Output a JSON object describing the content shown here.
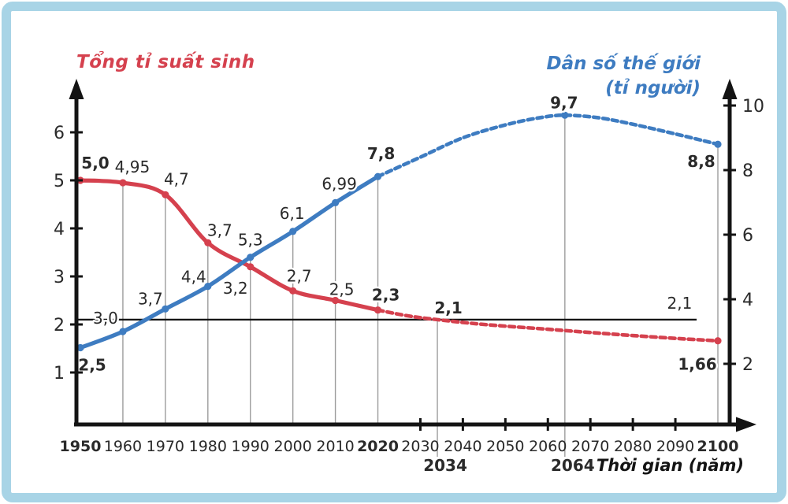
{
  "colors": {
    "red": "#d5414e",
    "blue": "#3e7cc1",
    "axis": "#141414",
    "grid": "#9c9c9c",
    "text": "#2a2a2a",
    "frame_border": "#a8d4e6",
    "background": "#ffffff"
  },
  "chart_data": {
    "type": "line",
    "title_left": "Tổng tỉ suất sinh",
    "title_right_line1": "Dân số thế giới",
    "title_right_line2": "(tỉ người)",
    "xlabel": "Thời gian (năm)",
    "x_axis": {
      "ticks": [
        {
          "label": "1950",
          "year": 1950,
          "bold": true,
          "mark": false
        },
        {
          "label": "1960",
          "year": 1960,
          "bold": false,
          "mark": false
        },
        {
          "label": "1970",
          "year": 1970,
          "bold": false,
          "mark": false
        },
        {
          "label": "1980",
          "year": 1980,
          "bold": false,
          "mark": false
        },
        {
          "label": "1990",
          "year": 1990,
          "bold": false,
          "mark": false
        },
        {
          "label": "2000",
          "year": 2000,
          "bold": false,
          "mark": false
        },
        {
          "label": "2010",
          "year": 2010,
          "bold": false,
          "mark": false
        },
        {
          "label": "2020",
          "year": 2020,
          "bold": true,
          "mark": false
        },
        {
          "label": "2030",
          "year": 2030,
          "bold": false,
          "mark": true
        },
        {
          "label": "2040",
          "year": 2040,
          "bold": false,
          "mark": true
        },
        {
          "label": "2050",
          "year": 2050,
          "bold": false,
          "mark": true
        },
        {
          "label": "2060",
          "year": 2060,
          "bold": false,
          "mark": true
        },
        {
          "label": "2070",
          "year": 2070,
          "bold": false,
          "mark": true
        },
        {
          "label": "2080",
          "year": 2080,
          "bold": false,
          "mark": true
        },
        {
          "label": "2090",
          "year": 2090,
          "bold": false,
          "mark": true
        },
        {
          "label": "2100",
          "year": 2100,
          "bold": true,
          "mark": false
        }
      ],
      "below_labels": [
        {
          "label": "2034",
          "year": 2034
        },
        {
          "label": "2064",
          "year": 2064
        }
      ]
    },
    "left_axis": {
      "ticks": [
        {
          "label": "1",
          "value": 1
        },
        {
          "label": "2",
          "value": 2
        },
        {
          "label": "3",
          "value": 3
        },
        {
          "label": "4",
          "value": 4
        },
        {
          "label": "5",
          "value": 5
        },
        {
          "label": "6",
          "value": 6
        }
      ]
    },
    "right_axis": {
      "ticks": [
        {
          "label": "2",
          "value": 2
        },
        {
          "label": "4",
          "value": 4
        },
        {
          "label": "6",
          "value": 6
        },
        {
          "label": "8",
          "value": 8
        },
        {
          "label": "10",
          "value": 10
        }
      ]
    },
    "reference_line": {
      "value": 2.1,
      "start_year": 1949,
      "end_year": 2095,
      "right_label": "2,1",
      "right_label_year": 2091,
      "right_label_dy": -21
    },
    "gridlines": [
      {
        "year": 1960,
        "extend_below": false
      },
      {
        "year": 1970,
        "extend_below": false
      },
      {
        "year": 1980,
        "extend_below": false
      },
      {
        "year": 1990,
        "extend_below": false
      },
      {
        "year": 2000,
        "extend_below": false
      },
      {
        "year": 2010,
        "extend_below": false
      },
      {
        "year": 2020,
        "extend_below": false
      },
      {
        "year": 2034,
        "extend_below": true
      },
      {
        "year": 2064,
        "extend_below": true
      },
      {
        "year": 2100,
        "extend_below": false
      }
    ],
    "series": [
      {
        "name": "Tổng tỉ suất sinh",
        "id": "fertility-rate",
        "axis": "left",
        "color": "#d5414e",
        "solid_points": [
          {
            "year": 1950,
            "value": 5.0,
            "label": "5,0",
            "bold": true,
            "dx": 19,
            "dy": -22,
            "marker": true
          },
          {
            "year": 1960,
            "value": 4.95,
            "label": "4,95",
            "bold": false,
            "dx": 12,
            "dy": -20,
            "marker": true
          },
          {
            "year": 1970,
            "value": 4.7,
            "label": "4,7",
            "bold": false,
            "dx": 14,
            "dy": -20,
            "marker": true
          },
          {
            "year": 1980,
            "value": 3.7,
            "label": "3,7",
            "bold": false,
            "dx": 15,
            "dy": -16,
            "marker": true
          },
          {
            "year": 1990,
            "value": 3.2,
            "label": "3,2",
            "bold": false,
            "dx": -19,
            "dy": 27,
            "marker": true
          },
          {
            "year": 2000,
            "value": 2.7,
            "label": "2,7",
            "bold": false,
            "dx": 8,
            "dy": -19,
            "marker": true
          },
          {
            "year": 2010,
            "value": 2.5,
            "label": "2,5",
            "bold": false,
            "dx": 8,
            "dy": -14,
            "marker": true
          },
          {
            "year": 2020,
            "value": 2.3,
            "label": "2,3",
            "bold": true,
            "dx": 10,
            "dy": -19,
            "marker": true
          }
        ],
        "dashed_points": [
          {
            "year": 2020,
            "value": 2.3,
            "marker": false
          },
          {
            "year": 2027,
            "value": 2.18,
            "marker": false
          },
          {
            "year": 2034,
            "value": 2.1,
            "label": "2,1",
            "bold": true,
            "dx": 14,
            "dy": -15,
            "marker": false
          },
          {
            "year": 2045,
            "value": 2.0,
            "marker": false
          },
          {
            "year": 2060,
            "value": 1.9,
            "marker": false
          },
          {
            "year": 2075,
            "value": 1.8,
            "marker": false
          },
          {
            "year": 2090,
            "value": 1.71,
            "marker": false
          },
          {
            "year": 2100,
            "value": 1.66,
            "label": "1,66",
            "bold": true,
            "dx": -26,
            "dy": 30,
            "marker": true
          }
        ]
      },
      {
        "name": "Dân số thế giới",
        "id": "world-population",
        "axis": "right",
        "color": "#3e7cc1",
        "solid_points": [
          {
            "year": 1950,
            "value": 2.5,
            "label": "2,5",
            "bold": true,
            "dx": 15,
            "dy": 22,
            "marker": true
          },
          {
            "year": 1960,
            "value": 3.0,
            "label": "3,0",
            "bold": false,
            "dx": -22,
            "dy": -17,
            "marker": true
          },
          {
            "year": 1970,
            "value": 3.7,
            "label": "3,7",
            "bold": false,
            "dx": -19,
            "dy": -13,
            "marker": true
          },
          {
            "year": 1980,
            "value": 4.4,
            "label": "4,4",
            "bold": false,
            "dx": -18,
            "dy": -12,
            "marker": true
          },
          {
            "year": 1990,
            "value": 5.3,
            "label": "5,3",
            "bold": false,
            "dx": 0,
            "dy": -22,
            "marker": true
          },
          {
            "year": 2000,
            "value": 6.1,
            "label": "6,1",
            "bold": false,
            "dx": -1,
            "dy": -23,
            "marker": true
          },
          {
            "year": 2010,
            "value": 6.99,
            "label": "6,99",
            "bold": false,
            "dx": 5,
            "dy": -24,
            "marker": true
          },
          {
            "year": 2020,
            "value": 7.8,
            "label": "7,8",
            "bold": true,
            "dx": 4,
            "dy": -29,
            "marker": true
          }
        ],
        "dashed_points": [
          {
            "year": 2020,
            "value": 7.8,
            "marker": false
          },
          {
            "year": 2030,
            "value": 8.4,
            "marker": false
          },
          {
            "year": 2040,
            "value": 9.0,
            "marker": false
          },
          {
            "year": 2050,
            "value": 9.4,
            "marker": false
          },
          {
            "year": 2058,
            "value": 9.62,
            "marker": false
          },
          {
            "year": 2064,
            "value": 9.7,
            "label": "9,7",
            "bold": true,
            "dx": -1,
            "dy": -16,
            "marker": true
          },
          {
            "year": 2072,
            "value": 9.62,
            "marker": false
          },
          {
            "year": 2080,
            "value": 9.42,
            "marker": false
          },
          {
            "year": 2090,
            "value": 9.12,
            "marker": false
          },
          {
            "year": 2100,
            "value": 8.8,
            "label": "8,8",
            "bold": true,
            "dx": -21,
            "dy": 22,
            "marker": true
          }
        ]
      }
    ]
  }
}
